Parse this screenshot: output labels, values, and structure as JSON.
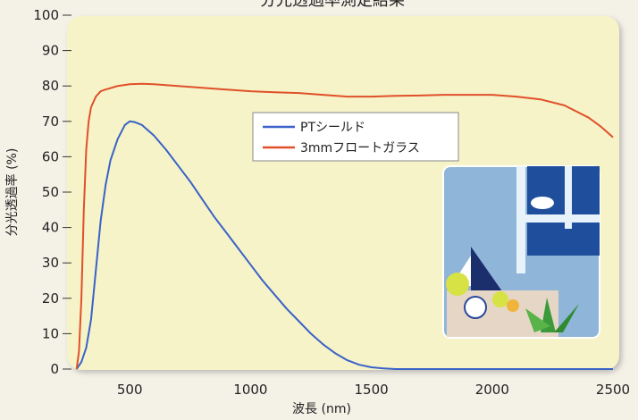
{
  "chart_data": {
    "type": "line",
    "title": "分光透過率測定結果",
    "xlabel": "波長 (nm)",
    "ylabel": "分光透過率 (%)",
    "xlim": [
      270,
      2500
    ],
    "ylim": [
      0,
      100
    ],
    "xticks": [
      500,
      1000,
      1500,
      2000,
      2500
    ],
    "yticks": [
      0,
      10,
      20,
      30,
      40,
      50,
      60,
      70,
      80,
      90,
      100
    ],
    "legend_position": "upper-center",
    "grid": false,
    "background_color": "#f6f3c8",
    "series": [
      {
        "name": "PTシールド",
        "color": "#3a62c8",
        "x": [
          280,
          300,
          320,
          340,
          360,
          380,
          400,
          420,
          450,
          480,
          500,
          520,
          550,
          600,
          650,
          700,
          750,
          800,
          850,
          900,
          950,
          1000,
          1050,
          1100,
          1150,
          1200,
          1250,
          1300,
          1350,
          1400,
          1450,
          1500,
          1550,
          1600,
          1700,
          1800,
          2000,
          2200,
          2500
        ],
        "y": [
          0,
          2,
          6,
          14,
          28,
          42,
          52,
          59,
          65,
          69,
          70,
          69.8,
          69,
          66,
          62,
          57.5,
          53,
          48,
          43,
          38.5,
          34,
          29.5,
          25,
          21,
          17,
          13.5,
          10,
          7,
          4.5,
          2.5,
          1.2,
          0.5,
          0.2,
          0,
          0,
          0,
          0,
          0,
          0
        ]
      },
      {
        "name": "3mmフロートガラス",
        "color": "#e0502a",
        "x": [
          280,
          290,
          300,
          310,
          320,
          330,
          340,
          360,
          380,
          400,
          450,
          500,
          550,
          600,
          700,
          800,
          900,
          1000,
          1100,
          1200,
          1300,
          1400,
          1500,
          1600,
          1700,
          1800,
          1900,
          2000,
          2100,
          2200,
          2300,
          2400,
          2450,
          2500
        ],
        "y": [
          0,
          5,
          20,
          45,
          62,
          70,
          74,
          77,
          78.5,
          79,
          80,
          80.5,
          80.6,
          80.5,
          80,
          79.5,
          79,
          78.5,
          78.2,
          78,
          77.5,
          77,
          77,
          77.2,
          77.3,
          77.5,
          77.5,
          77.5,
          77,
          76.2,
          74.5,
          71,
          68.5,
          65.5
        ]
      }
    ]
  }
}
